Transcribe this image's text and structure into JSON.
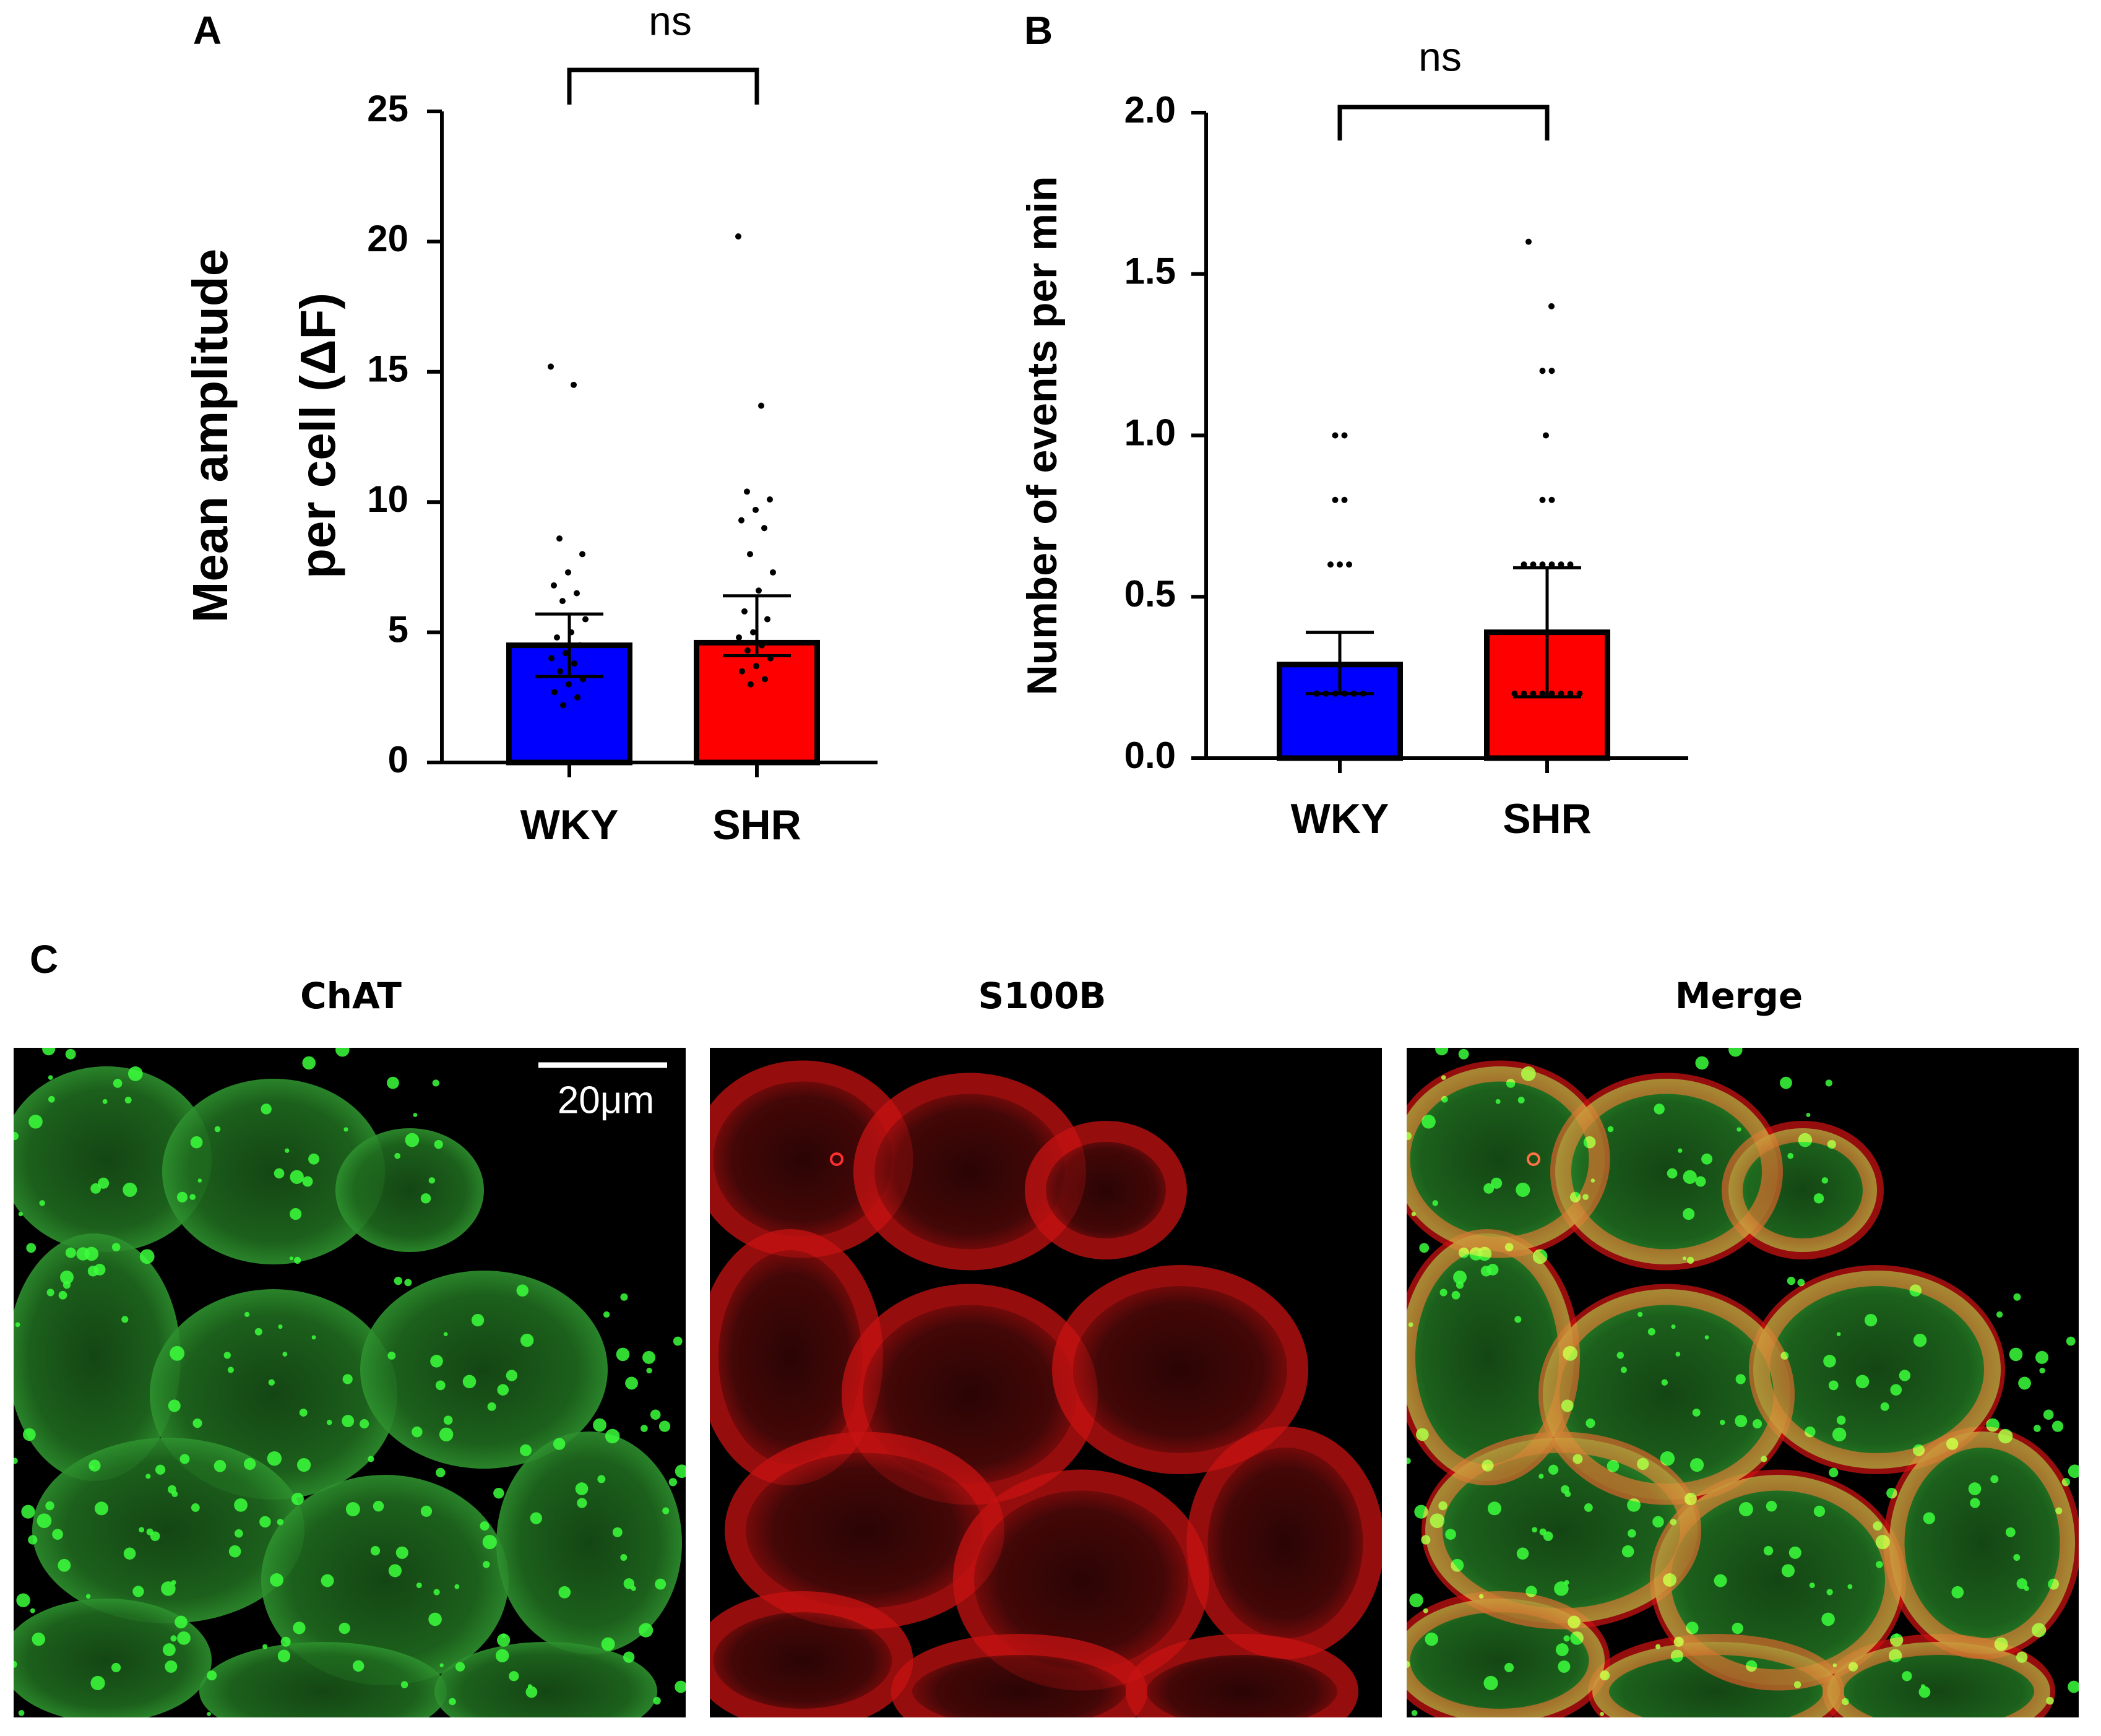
{
  "chart_data": [
    {
      "type": "bar",
      "panel": "A",
      "annotation": "ns",
      "ylabel": [
        "Mean amplitude",
        "per cell (ΔF)"
      ],
      "categories": [
        "WKY",
        "SHR"
      ],
      "values": [
        4.5,
        4.6
      ],
      "colors": [
        "#0000ff",
        "#ff0000"
      ],
      "error_upper": [
        1.2,
        1.8
      ],
      "error_lower": [
        1.2,
        0.5
      ],
      "points": [
        [
          15.2,
          14.5,
          8.6,
          8.0,
          7.3,
          6.8,
          6.5,
          6.2,
          5.5,
          5.0,
          4.8,
          4.5,
          4.2,
          4.0,
          3.8,
          3.5,
          3.2,
          3.0,
          2.7,
          2.5,
          2.2
        ],
        [
          20.2,
          13.7,
          10.4,
          10.1,
          9.7,
          9.3,
          9.0,
          8.0,
          7.3,
          6.6,
          5.8,
          5.5,
          5.0,
          4.8,
          4.5,
          4.3,
          4.0,
          3.7,
          3.5,
          3.2,
          3.0
        ]
      ],
      "ylim": [
        0,
        25
      ],
      "yticks": [
        0,
        5,
        10,
        15,
        20,
        25
      ]
    },
    {
      "type": "bar",
      "panel": "B",
      "annotation": "ns",
      "ylabel": [
        "Number of events per min"
      ],
      "categories": [
        "WKY",
        "SHR"
      ],
      "values": [
        0.29,
        0.39
      ],
      "colors": [
        "#0000ff",
        "#ff0000"
      ],
      "error_upper": [
        0.1,
        0.2
      ],
      "error_lower": [
        0.09,
        0.2
      ],
      "points": [
        [
          1.0,
          1.0,
          0.8,
          0.8,
          0.6,
          0.6,
          0.6,
          0.2,
          0.2,
          0.2,
          0.2,
          0.2,
          0.2
        ],
        [
          1.6,
          1.4,
          1.2,
          1.2,
          1.0,
          0.8,
          0.8,
          0.6,
          0.6,
          0.6,
          0.6,
          0.6,
          0.6,
          0.2,
          0.2,
          0.2,
          0.2,
          0.2,
          0.2,
          0.2,
          0.2
        ]
      ],
      "ylim": [
        0,
        2
      ],
      "yticks": [
        {
          "value": 0,
          "label": "0.0"
        },
        0.5,
        {
          "value": 1,
          "label": "1.0"
        },
        1.5,
        {
          "value": 2,
          "label": "2.0"
        }
      ]
    }
  ],
  "panel_c": {
    "panel": "C",
    "images": [
      "ChAT",
      "S100B",
      "Merge"
    ],
    "scale_bar": "20μm"
  }
}
